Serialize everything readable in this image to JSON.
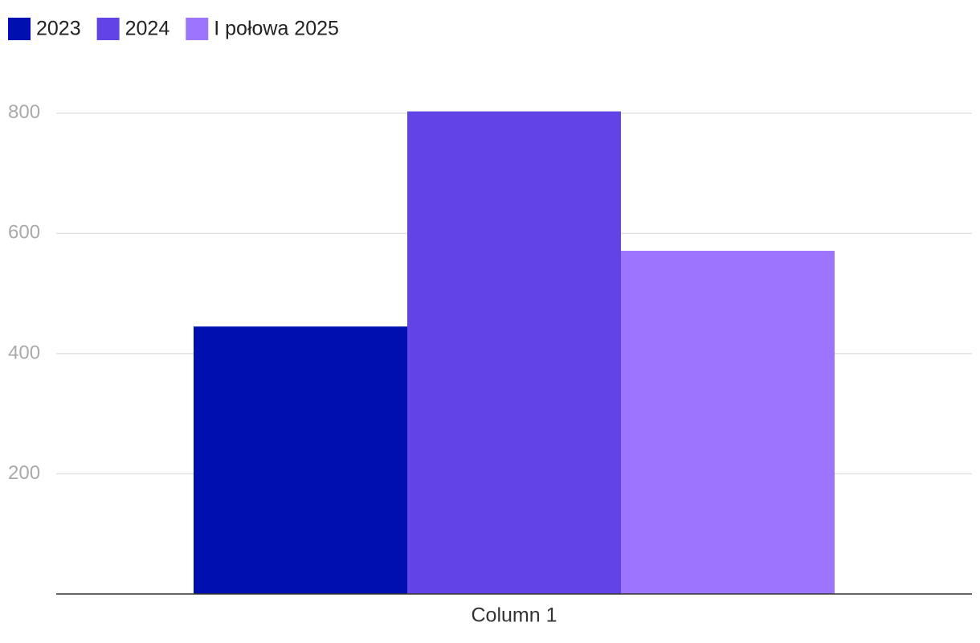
{
  "chart_data": {
    "type": "bar",
    "categories": [
      "Column 1"
    ],
    "series": [
      {
        "name": "2023",
        "color": "#0010b0",
        "values": [
          445
        ]
      },
      {
        "name": "2024",
        "color": "#6244e6",
        "values": [
          803
        ]
      },
      {
        "name": "I połowa 2025",
        "color": "#9d74fe",
        "values": [
          571
        ]
      }
    ],
    "ylim": [
      0,
      880
    ],
    "yticks": [
      200,
      400,
      600,
      800
    ],
    "grid": true,
    "legend": "top-left"
  }
}
